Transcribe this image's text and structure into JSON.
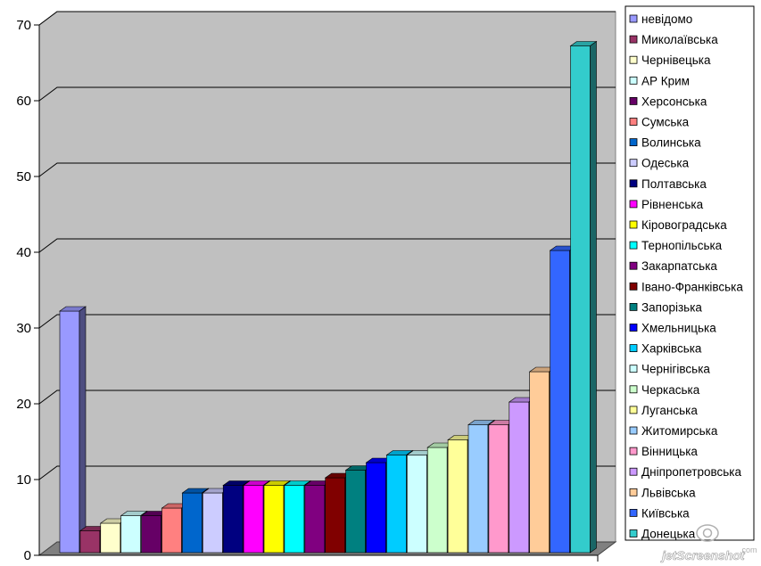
{
  "watermark": {
    "text": "jetScreenshot",
    "sub": ".com"
  },
  "chart_data": {
    "type": "bar",
    "title": "",
    "xlabel": "",
    "ylabel": "",
    "ylim": [
      0,
      70
    ],
    "yticks": [
      "0",
      "10",
      "20",
      "30",
      "40",
      "50",
      "60",
      "70"
    ],
    "grid": true,
    "legend_position": "right",
    "style": "3d-column",
    "wall_color": "#c0c0c0",
    "floor_color": "#808080",
    "series": [
      {
        "name": "невідомо",
        "value": 32,
        "color": "#9999ff"
      },
      {
        "name": "Миколаївська",
        "value": 3,
        "color": "#993366"
      },
      {
        "name": "Чернівецька",
        "value": 4,
        "color": "#ffffcc"
      },
      {
        "name": "АР Крим",
        "value": 5,
        "color": "#ccffff"
      },
      {
        "name": "Херсонська",
        "value": 5,
        "color": "#660066"
      },
      {
        "name": "Сумська",
        "value": 6,
        "color": "#ff8080"
      },
      {
        "name": "Волинська",
        "value": 8,
        "color": "#0066cc"
      },
      {
        "name": "Одеська",
        "value": 8,
        "color": "#ccccff"
      },
      {
        "name": "Полтавська",
        "value": 9,
        "color": "#000080"
      },
      {
        "name": "Рівненська",
        "value": 9,
        "color": "#ff00ff"
      },
      {
        "name": "Кіровоградська",
        "value": 9,
        "color": "#ffff00"
      },
      {
        "name": "Тернопільська",
        "value": 9,
        "color": "#00ffff"
      },
      {
        "name": "Закарпатська",
        "value": 9,
        "color": "#800080"
      },
      {
        "name": "Івано-Франківська",
        "value": 10,
        "color": "#800000"
      },
      {
        "name": "Запорізька",
        "value": 11,
        "color": "#008080"
      },
      {
        "name": "Хмельницька",
        "value": 12,
        "color": "#0000ff"
      },
      {
        "name": "Харківська",
        "value": 13,
        "color": "#00ccff"
      },
      {
        "name": "Чернігівська",
        "value": 13,
        "color": "#ccffff"
      },
      {
        "name": "Черкаська",
        "value": 14,
        "color": "#ccffcc"
      },
      {
        "name": "Луганська",
        "value": 15,
        "color": "#ffff99"
      },
      {
        "name": "Житомирська",
        "value": 17,
        "color": "#99ccff"
      },
      {
        "name": "Вінницька",
        "value": 17,
        "color": "#ff99cc"
      },
      {
        "name": "Дніпропетровська",
        "value": 20,
        "color": "#cc99ff"
      },
      {
        "name": "Львівська",
        "value": 24,
        "color": "#ffcc99"
      },
      {
        "name": "Київська",
        "value": 40,
        "color": "#3366ff"
      },
      {
        "name": "Донецька",
        "value": 67,
        "color": "#33cccc"
      }
    ]
  }
}
